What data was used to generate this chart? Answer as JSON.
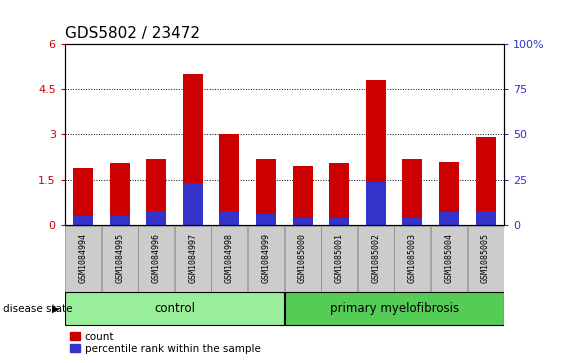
{
  "title": "GDS5802 / 23472",
  "samples": [
    "GSM1084994",
    "GSM1084995",
    "GSM1084996",
    "GSM1084997",
    "GSM1084998",
    "GSM1084999",
    "GSM1085000",
    "GSM1085001",
    "GSM1085002",
    "GSM1085003",
    "GSM1085004",
    "GSM1085005"
  ],
  "counts": [
    1.9,
    2.05,
    2.18,
    5.0,
    3.02,
    2.18,
    1.95,
    2.05,
    4.78,
    2.18,
    2.1,
    2.92
  ],
  "percentiles_pct": [
    5,
    5,
    8,
    23,
    8,
    6,
    4,
    4,
    24,
    4,
    7,
    8
  ],
  "control_count": 6,
  "group_labels": [
    "control",
    "primary myelofibrosis"
  ],
  "bar_color_red": "#cc0000",
  "bar_color_blue": "#3333cc",
  "control_bg": "#99ee99",
  "myelofibrosis_bg": "#55cc55",
  "xticklabel_bg": "#cccccc",
  "ylim_left": [
    0,
    6
  ],
  "ylim_right": [
    0,
    100
  ],
  "yticks_left": [
    0,
    1.5,
    3.0,
    4.5,
    6
  ],
  "ytick_labels_left": [
    "0",
    "1.5",
    "3",
    "4.5",
    "6"
  ],
  "yticks_right": [
    0,
    25,
    50,
    75,
    100
  ],
  "ytick_labels_right": [
    "0",
    "25",
    "50",
    "75",
    "100%"
  ],
  "legend_count_label": "count",
  "legend_percentile_label": "percentile rank within the sample",
  "title_fontsize": 11,
  "tick_fontsize": 8,
  "bar_width": 0.55
}
